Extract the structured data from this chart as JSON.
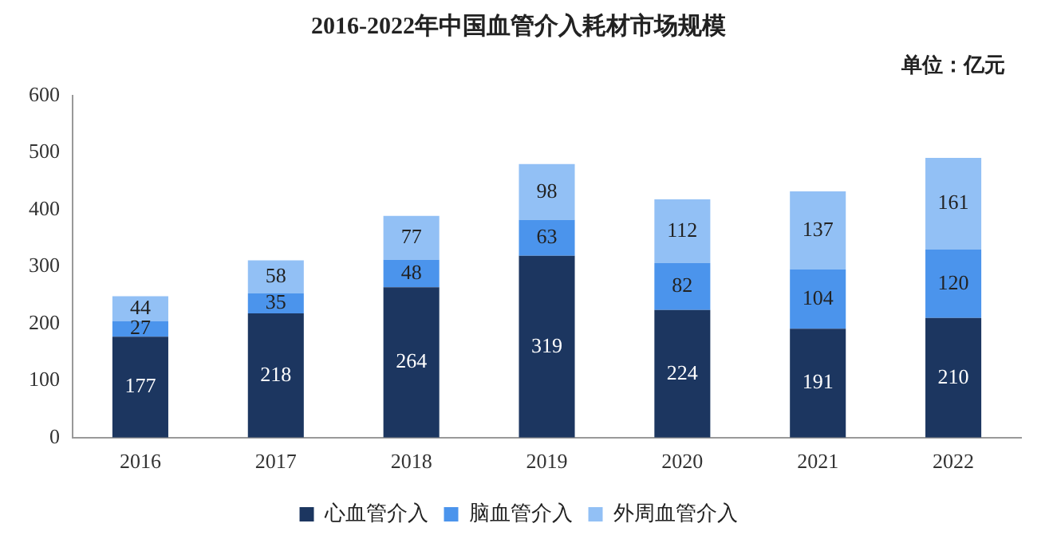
{
  "chart_data": {
    "type": "bar",
    "title": "2016-2022年中国血管介入耗材市场规模",
    "annotations": [
      "单位：亿元"
    ],
    "categories": [
      "2016",
      "2017",
      "2018",
      "2019",
      "2020",
      "2021",
      "2022"
    ],
    "stacked": true,
    "series": [
      {
        "name": "心血管介入",
        "color": "#1c3660",
        "values": [
          177,
          218,
          264,
          319,
          224,
          191,
          210
        ]
      },
      {
        "name": "脑血管介入",
        "color": "#4b94ec",
        "values": [
          27,
          35,
          48,
          63,
          82,
          104,
          120
        ]
      },
      {
        "name": "外周血管介入",
        "color": "#92c0f5",
        "values": [
          44,
          58,
          77,
          98,
          112,
          137,
          161
        ]
      }
    ],
    "ylim": [
      0,
      600
    ],
    "yticks": [
      0,
      100,
      200,
      300,
      400,
      500,
      600
    ],
    "grid": false,
    "legend": "bottom",
    "data_labels": true
  }
}
